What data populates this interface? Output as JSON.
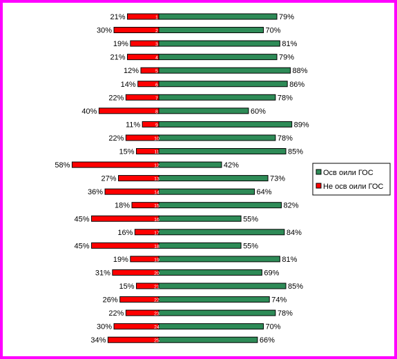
{
  "chart_data": {
    "type": "bar",
    "orientation": "horizontal-diverging",
    "categories": [
      "1",
      "2",
      "3",
      "4",
      "5",
      "6",
      "7",
      "8",
      "9",
      "10",
      "11",
      "12",
      "13",
      "14",
      "15",
      "16",
      "17",
      "18",
      "19",
      "20",
      "21",
      "22",
      "23",
      "24",
      "25"
    ],
    "series": [
      {
        "name": "Осв оили ГОС",
        "color": "#2e8b57",
        "values": [
          79,
          70,
          81,
          79,
          88,
          86,
          78,
          60,
          89,
          78,
          85,
          42,
          73,
          64,
          82,
          55,
          84,
          55,
          81,
          69,
          85,
          74,
          78,
          70,
          66
        ]
      },
      {
        "name": "Не осв оили ГОС",
        "color": "#ff0000",
        "values": [
          21,
          30,
          19,
          21,
          12,
          14,
          22,
          40,
          11,
          22,
          15,
          58,
          27,
          36,
          18,
          45,
          16,
          45,
          19,
          31,
          15,
          26,
          22,
          30,
          34
        ]
      }
    ],
    "value_suffix": "%",
    "xlim": [
      -58,
      89
    ],
    "legend_position": "right",
    "grid": false
  }
}
